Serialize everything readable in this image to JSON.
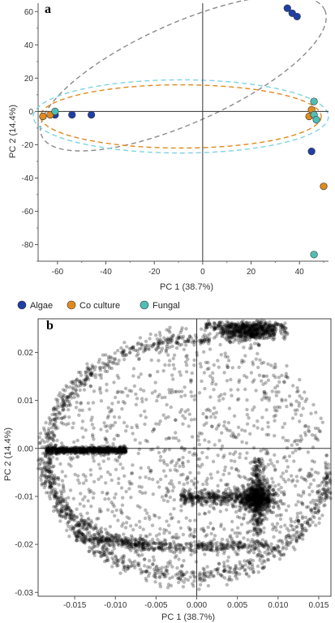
{
  "chart_data": [
    {
      "panel": "a",
      "type": "scatter",
      "xlabel": "PC 1 (38.7%)",
      "ylabel": "PC 2 (14.4%)",
      "xlim": [
        -68,
        52
      ],
      "ylim": [
        -90,
        65
      ],
      "xticks": [
        -60,
        -40,
        -20,
        0,
        20,
        40
      ],
      "yticks": [
        60,
        40,
        20,
        0,
        -20,
        -40,
        -60,
        -80
      ],
      "grid": false,
      "legend": "below",
      "series": [
        {
          "name": "Algae",
          "color": "#1f3fa6",
          "points": [
            [
              -61,
              -2
            ],
            [
              -54,
              -2
            ],
            [
              -46,
              -2
            ],
            [
              35,
              62
            ],
            [
              37,
              59
            ],
            [
              39,
              57
            ],
            [
              45,
              -24
            ]
          ]
        },
        {
          "name": "Co culture",
          "color": "#e08a1e",
          "points": [
            [
              -66,
              -3
            ],
            [
              -63,
              -2
            ],
            [
              44,
              -3
            ],
            [
              45,
              1
            ],
            [
              50,
              -45
            ]
          ]
        },
        {
          "name": "Fungal",
          "color": "#4fbfb4",
          "points": [
            [
              -61,
              0
            ],
            [
              46,
              6
            ],
            [
              46,
              -2
            ],
            [
              47,
              -5
            ],
            [
              46,
              -86
            ]
          ]
        }
      ],
      "ellipses": [
        {
          "series": "Algae",
          "color": "#8a8a8a",
          "cx": -8,
          "cy": 23,
          "rx": 64,
          "ry": 30,
          "angle_deg": 24
        },
        {
          "series": "Co culture",
          "color": "#e08a1e",
          "cx": -9,
          "cy": -3,
          "rx": 58,
          "ry": 19,
          "angle_deg": 0
        },
        {
          "series": "Fungal",
          "color": "#7fd3e2",
          "cx": -9,
          "cy": -3,
          "rx": 61,
          "ry": 22,
          "angle_deg": 0
        }
      ]
    },
    {
      "panel": "b",
      "type": "scatter",
      "xlabel": "PC 1 (38.7%)",
      "ylabel": "PC 2 (14.4%)",
      "xlim": [
        -0.0195,
        0.0165
      ],
      "ylim": [
        -0.0308,
        0.027
      ],
      "xticks": [
        -0.015,
        -0.01,
        -0.005,
        0.0,
        0.005,
        0.01,
        0.015
      ],
      "xtick_labels": [
        "-0.015",
        "-0.010",
        "-0.005",
        "0.000",
        "0.005",
        "0.010",
        "0.015"
      ],
      "yticks": [
        0.02,
        0.01,
        0.0,
        -0.01,
        -0.02,
        -0.03
      ],
      "ytick_labels": [
        "0.02",
        "0.01",
        "0.00",
        "-0.01",
        "-0.02",
        "-0.03"
      ],
      "grid": false,
      "color": "#000000",
      "opacity": 0.28,
      "dense_regions": [
        {
          "label": "left band",
          "x": [
            -0.0185,
            -0.0085
          ],
          "y": [
            -0.0008,
            0.0003
          ]
        },
        {
          "label": "top cluster",
          "x": [
            0.001,
            0.011
          ],
          "y": [
            0.022,
            0.026
          ]
        },
        {
          "label": "central cluster",
          "x": [
            0.005,
            0.0105
          ],
          "y": [
            -0.013,
            -0.008
          ]
        },
        {
          "label": "lower arc",
          "x": [
            -0.016,
            0.01
          ],
          "y": [
            -0.021,
            -0.017
          ]
        }
      ],
      "approx_point_count": 4000
    }
  ],
  "legend": {
    "items": [
      {
        "label": "Algae",
        "color": "#1f3fa6"
      },
      {
        "label": "Co culture",
        "color": "#e08a1e"
      },
      {
        "label": "Fungal",
        "color": "#4fbfb4"
      }
    ]
  }
}
